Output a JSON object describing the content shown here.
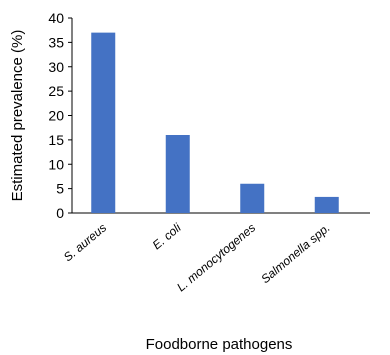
{
  "chart_data": {
    "type": "bar",
    "categories": [
      "S. aureus",
      "E. coli",
      "L. monocytogenes",
      "Salmonella spp."
    ],
    "values": [
      37,
      16,
      6,
      3.3
    ],
    "title": "",
    "xlabel": "Foodborne pathogens",
    "ylabel": "Estimated prevalence (%)",
    "ylim": [
      0,
      40
    ],
    "yticks": [
      0,
      5,
      10,
      15,
      20,
      25,
      30,
      35,
      40
    ],
    "bar_color": "#4472c4",
    "grid": false,
    "legend": "none"
  }
}
